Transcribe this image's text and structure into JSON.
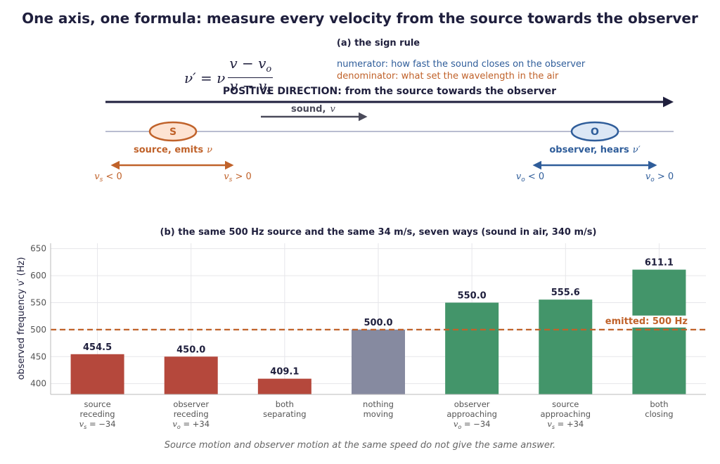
{
  "title": "One axis, one formula:  measure every velocity from the source towards the observer",
  "panel_a": {
    "title": "(a)  the sign rule",
    "formula": {
      "lhs": "ν′ = ν",
      "numerator": "v − v",
      "numerator_sub": "o",
      "denominator": "v − v",
      "denominator_sub": "s"
    },
    "numerator_note": "numerator:  how fast the sound closes on the observer",
    "denominator_note": "denominator:  what set the wavelength in the air",
    "positive_direction": "POSITIVE DIRECTION:  from the source towards the observer",
    "sound_label": "sound,",
    "sound_symbol": "v",
    "source": {
      "letter": "S",
      "label": "source, emits",
      "symbol": "ν",
      "neg": "v",
      "neg_sub": "s",
      "neg_rel": " < 0",
      "pos": "v",
      "pos_sub": "s",
      "pos_rel": " > 0"
    },
    "observer": {
      "letter": "O",
      "label": "observer, hears",
      "symbol": "ν′",
      "neg": "v",
      "neg_sub": "o",
      "neg_rel": " < 0",
      "pos": "v",
      "pos_sub": "o",
      "pos_rel": " > 0"
    },
    "colors": {
      "source": "#c0622a",
      "observer": "#2f5d9a",
      "dark": "#1f1f3d",
      "sound": "#4a4a5a"
    }
  },
  "chart_data": {
    "type": "bar",
    "title": "(b)  the same 500 Hz source and the same 34 m/s, seven ways  (sound in air, 340 m/s)",
    "ylabel": "observed frequency  ν′ (Hz)",
    "ylim": [
      380,
      660
    ],
    "yticks": [
      400,
      450,
      500,
      550,
      600,
      650
    ],
    "grid": true,
    "categories": [
      {
        "lines": [
          "source",
          "receding"
        ],
        "math": {
          "var": "v",
          "sub": "s",
          "rest": " = −34"
        }
      },
      {
        "lines": [
          "observer",
          "receding"
        ],
        "math": {
          "var": "v",
          "sub": "o",
          "rest": " = +34"
        }
      },
      {
        "lines": [
          "both",
          "separating"
        ],
        "math": null
      },
      {
        "lines": [
          "nothing",
          "moving"
        ],
        "math": null
      },
      {
        "lines": [
          "observer",
          "approaching"
        ],
        "math": {
          "var": "v",
          "sub": "o",
          "rest": " = −34"
        }
      },
      {
        "lines": [
          "source",
          "approaching"
        ],
        "math": {
          "var": "v",
          "sub": "s",
          "rest": " = +34"
        }
      },
      {
        "lines": [
          "both",
          "closing"
        ],
        "math": null
      }
    ],
    "values": [
      454.5,
      450.0,
      409.1,
      500.0,
      550.0,
      555.6,
      611.1
    ],
    "labels": [
      "454.5",
      "450.0",
      "409.1",
      "500.0",
      "550.0",
      "555.6",
      "611.1"
    ],
    "colors": [
      "#b5483c",
      "#b5483c",
      "#b5483c",
      "#868aa0",
      "#43956a",
      "#43956a",
      "#43956a"
    ],
    "reference": {
      "value": 500,
      "label": "emitted:  500 Hz",
      "color": "#c0622a"
    }
  },
  "caption": "Source motion and observer motion at the same speed do not give the same answer."
}
